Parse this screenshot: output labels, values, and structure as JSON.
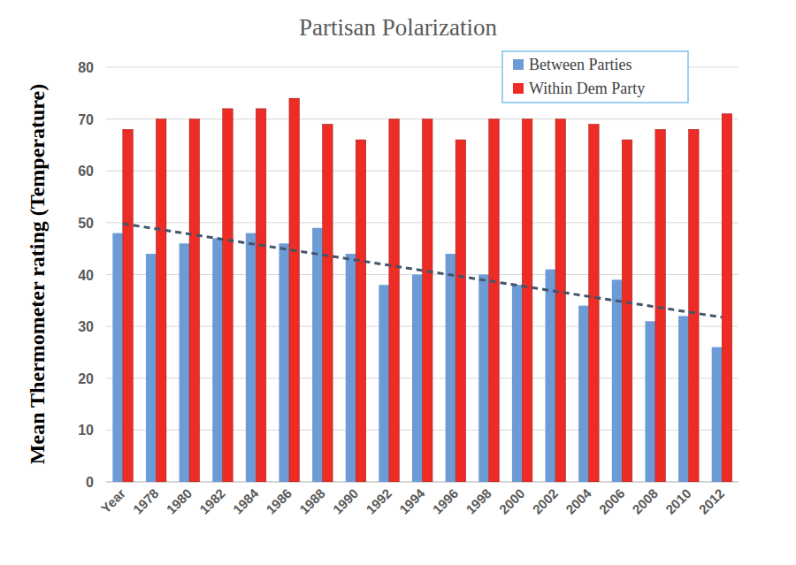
{
  "chart_data": {
    "type": "bar",
    "title": "Partisan Polarization",
    "y_label": "Mean Thermometer rating (Temperature)",
    "categories": [
      "Year",
      "1978",
      "1980",
      "1982",
      "1984",
      "1986",
      "1988",
      "1990",
      "1992",
      "1994",
      "1996",
      "1998",
      "2000",
      "2002",
      "2004",
      "2006",
      "2008",
      "2010",
      "2012"
    ],
    "series": [
      {
        "name": "Between Parties",
        "color": "#6d9bd6",
        "values": [
          48,
          44,
          46,
          47,
          48,
          46,
          49,
          44,
          38,
          40,
          44,
          40,
          38,
          41,
          34,
          39,
          31,
          32,
          26
        ]
      },
      {
        "name": "Within Dem Party",
        "color": "#ee2b24",
        "values": [
          68,
          70,
          70,
          72,
          72,
          74,
          69,
          66,
          70,
          70,
          66,
          70,
          70,
          70,
          69,
          66,
          68,
          68,
          71
        ]
      }
    ],
    "ylim": [
      0,
      80
    ],
    "yticks": [
      0,
      10,
      20,
      30,
      40,
      50,
      60,
      70,
      80
    ],
    "grid": true,
    "legend": "top-right"
  }
}
